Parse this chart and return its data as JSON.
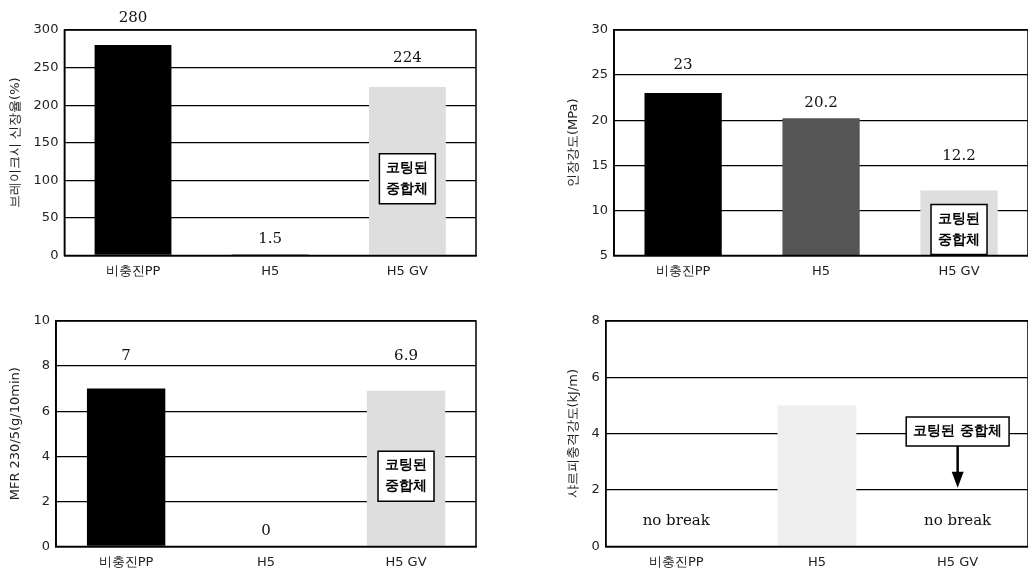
{
  "chart_data": [
    {
      "type": "bar",
      "ylabel": "브레이크시 신장율(%)",
      "categories": [
        "비충진PP",
        "H5",
        "H5 GV"
      ],
      "values": [
        280,
        1.5,
        224
      ],
      "colors": [
        "#000000",
        "#555555",
        "#dedede"
      ],
      "ylim": [
        0,
        300
      ],
      "yticks": [
        0,
        50,
        100,
        150,
        200,
        250,
        300
      ],
      "grid": "y",
      "legend": false,
      "data_labels": true,
      "annotations": [
        "코팅된\n중합체"
      ]
    },
    {
      "type": "bar",
      "ylabel": "인장강도(MPa)",
      "categories": [
        "비충진PP",
        "H5",
        "H5 GV"
      ],
      "values": [
        23,
        20.2,
        12.2
      ],
      "colors": [
        "#000000",
        "#555555",
        "#dedede"
      ],
      "ylim": [
        5,
        30
      ],
      "yticks": [
        5,
        10,
        15,
        20,
        25,
        30
      ],
      "grid": "y",
      "legend": false,
      "data_labels": true,
      "annotations": [
        "코팅된\n중합체"
      ]
    },
    {
      "type": "bar",
      "ylabel": "MFR 230/5(g/10min)",
      "categories": [
        "비충진PP",
        "H5",
        "H5 GV"
      ],
      "values": [
        7,
        0,
        6.9
      ],
      "colors": [
        "#000000",
        "#555555",
        "#dedede"
      ],
      "ylim": [
        0,
        10
      ],
      "yticks": [
        0,
        2,
        4,
        6,
        8,
        10
      ],
      "grid": "y",
      "legend": false,
      "data_labels": true,
      "annotations": [
        "코팅된\n중합체"
      ]
    },
    {
      "type": "bar",
      "ylabel": "샤르피충격강도(kJ/m)",
      "categories": [
        "비충진PP",
        "H5",
        "H5 GV"
      ],
      "values": [
        null,
        5,
        null
      ],
      "colors": [
        "#000000",
        "#eeeeee",
        "#dedede"
      ],
      "ylim": [
        0,
        8
      ],
      "yticks": [
        0,
        2,
        4,
        6,
        8
      ],
      "grid": "y",
      "legend": false,
      "annotations": [
        "코팅된 중합체",
        "no break",
        "no break"
      ]
    }
  ]
}
